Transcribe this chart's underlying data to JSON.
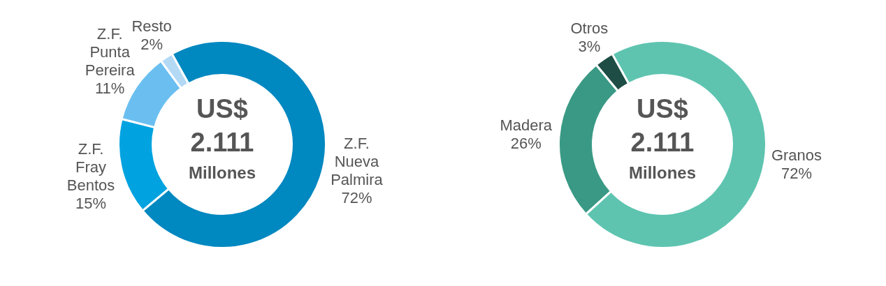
{
  "chart_data": [
    {
      "type": "donut",
      "categories": [
        "Z.F.\nNueva\nPalmira",
        "Z.F.\nFray\nBentos",
        "Z.F.\nPunta\nPereira",
        "Resto"
      ],
      "values": [
        72,
        15,
        11,
        2
      ],
      "colors": [
        "#0088c0",
        "#00a3e0",
        "#6bbff0",
        "#b3d9f5"
      ],
      "value_labels": [
        "72%",
        "15%",
        "11%",
        "2%"
      ],
      "annotations": [
        "US$",
        "2.111",
        "Millones"
      ]
    },
    {
      "type": "donut",
      "categories": [
        "Granos",
        "Madera",
        "Otros"
      ],
      "values": [
        72,
        26,
        3
      ],
      "colors": [
        "#5ec4b0",
        "#3a9985",
        "#1d4d45"
      ],
      "value_labels": [
        "72%",
        "26%",
        "3%"
      ],
      "annotations": [
        "US$",
        "2.111",
        "Millones"
      ]
    }
  ]
}
